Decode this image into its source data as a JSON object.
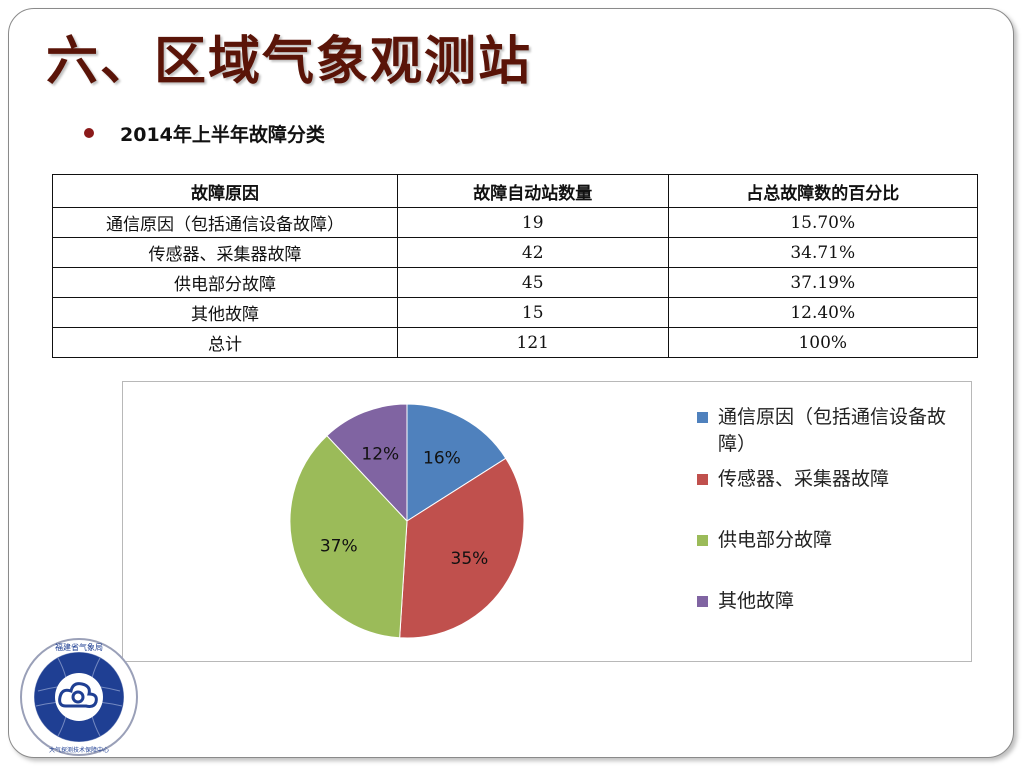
{
  "slide": {
    "title": "六、区域气象观测站",
    "bullet": "2014年上半年故障分类"
  },
  "table": {
    "headers": [
      "故障原因",
      "故障自动站数量",
      "占总故障数的百分比"
    ],
    "rows": [
      [
        "通信原因（包括通信设备故障）",
        "19",
        "15.70%"
      ],
      [
        "传感器、采集器故障",
        "42",
        "34.71%"
      ],
      [
        "供电部分故障",
        "45",
        "37.19%"
      ],
      [
        "其他故障",
        "15",
        "12.40%"
      ],
      [
        "总计",
        "121",
        "100%"
      ]
    ]
  },
  "chart_data": {
    "type": "pie",
    "categories": [
      "通信原因（包括通信设备故障）",
      "传感器、采集器故障",
      "供电部分故障",
      "其他故障"
    ],
    "values": [
      16,
      35,
      37,
      12
    ],
    "labels": [
      "16%",
      "35%",
      "37%",
      "12%"
    ],
    "colors": [
      "#4f81bd",
      "#c0504d",
      "#9bbb59",
      "#8064a2"
    ],
    "legend_position": "right"
  },
  "logo": {
    "text_top": "福建省气象局",
    "text_bottom": "大气探测技术保障中心",
    "icon": "cloud-emblem-icon"
  }
}
